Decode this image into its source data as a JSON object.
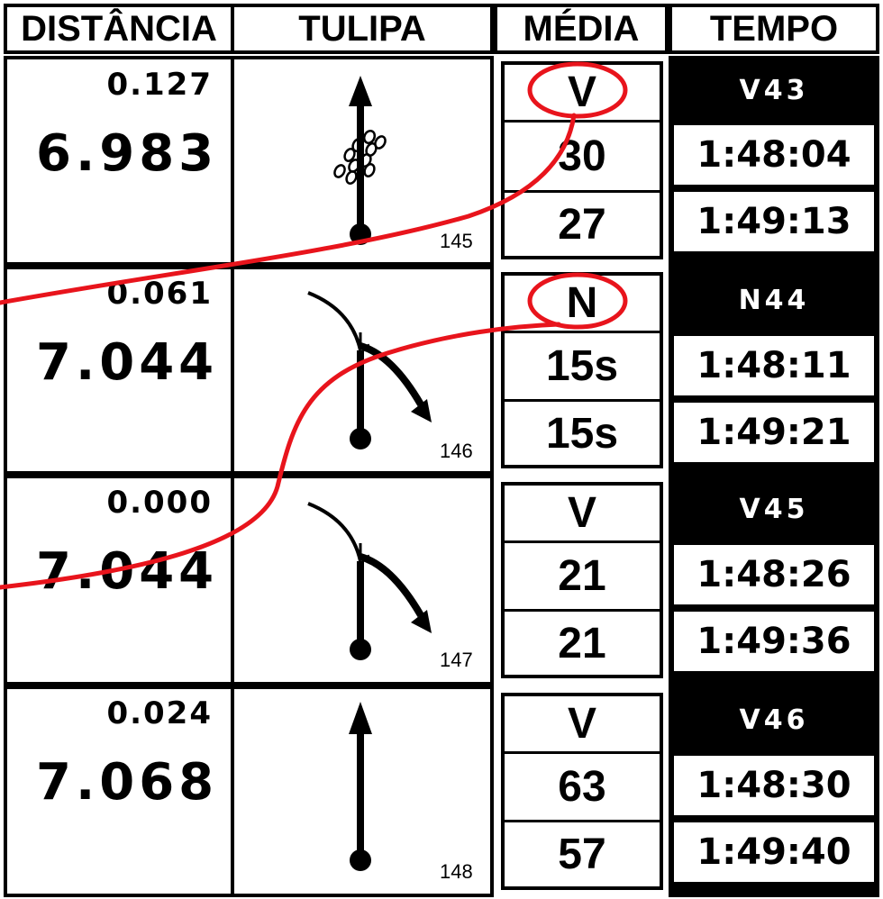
{
  "headers": {
    "distance": "DISTÂNCIA",
    "tulip": "TULIPA",
    "average": "MÉDIA",
    "time": "TEMPO"
  },
  "rows": [
    {
      "partial": "0.127",
      "total": "6.983",
      "box_number": "145",
      "tulip_icon": "straight-arrow-with-stones-icon",
      "average": {
        "type": "V",
        "first": "30",
        "second": "27"
      },
      "time": {
        "code": "V43",
        "first": "1:48:04",
        "second": "1:49:13"
      }
    },
    {
      "partial": "0.061",
      "total": "7.044",
      "box_number": "146",
      "tulip_icon": "fork-right-arrow-icon",
      "average": {
        "type": "N",
        "first": "15s",
        "second": "15s"
      },
      "time": {
        "code": "N44",
        "first": "1:48:11",
        "second": "1:49:21"
      }
    },
    {
      "partial": "0.000",
      "total": "7.044",
      "box_number": "147",
      "tulip_icon": "fork-right-arrow-icon",
      "average": {
        "type": "V",
        "first": "21",
        "second": "21"
      },
      "time": {
        "code": "V45",
        "first": "1:48:26",
        "second": "1:49:36"
      }
    },
    {
      "partial": "0.024",
      "total": "7.068",
      "box_number": "148",
      "tulip_icon": "straight-arrow-icon",
      "average": {
        "type": "V",
        "first": "63",
        "second": "57"
      },
      "time": {
        "code": "V46",
        "first": "1:48:30",
        "second": "1:49:40"
      }
    }
  ],
  "annotation": {
    "color": "#e8141c",
    "circled": [
      "rows.0.average.type",
      "rows.1.average.type"
    ],
    "icon": "red-hand-drawn-line-icon"
  }
}
